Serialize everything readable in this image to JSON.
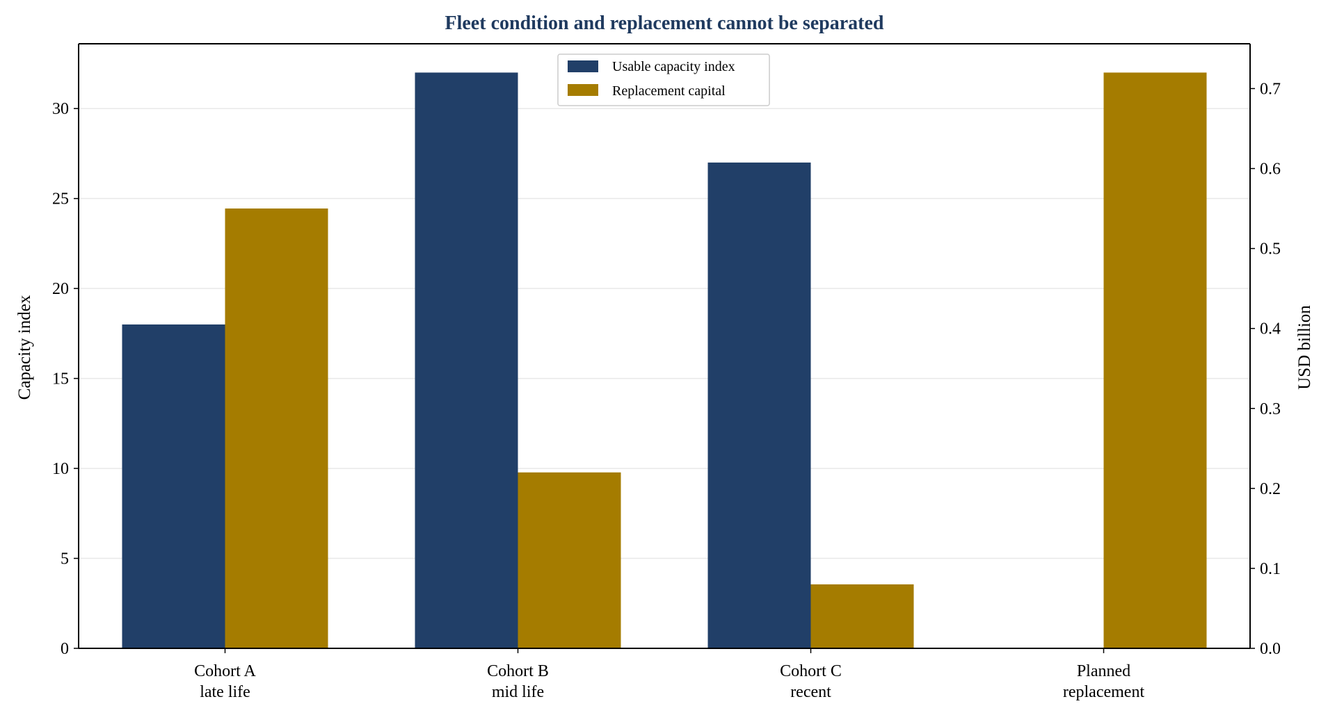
{
  "chart_data": {
    "type": "bar",
    "title": "Fleet condition and replacement cannot be separated",
    "categories": [
      [
        "Cohort A",
        "late life"
      ],
      [
        "Cohort B",
        "mid life"
      ],
      [
        "Cohort C",
        "recent"
      ],
      [
        "Planned",
        "replacement"
      ]
    ],
    "ylabel": "Capacity index",
    "y2label": "USD billion",
    "ylim": [
      0,
      33.6
    ],
    "y2lim": [
      0,
      0.756
    ],
    "yticks": [
      "0",
      "5",
      "10",
      "15",
      "20",
      "25",
      "30"
    ],
    "ytick_values": [
      0,
      5,
      10,
      15,
      20,
      25,
      30
    ],
    "y2ticks": [
      "0.0",
      "0.1",
      "0.2",
      "0.3",
      "0.4",
      "0.5",
      "0.6",
      "0.7"
    ],
    "y2tick_values": [
      0,
      0.1,
      0.2,
      0.3,
      0.4,
      0.5,
      0.6,
      0.7
    ],
    "grid": "horizontal",
    "legend_position": "top-center",
    "series": [
      {
        "name": "Usable capacity index",
        "axis": "left",
        "color": "#213f68",
        "values": [
          18,
          32,
          27,
          0
        ]
      },
      {
        "name": "Replacement capital",
        "axis": "right",
        "color": "#a57c00",
        "values": [
          0.55,
          0.22,
          0.08,
          0.72
        ]
      }
    ],
    "colors": {
      "title": "#1f3a5f",
      "axis": "#000000",
      "grid": "#e8e8e8"
    }
  }
}
